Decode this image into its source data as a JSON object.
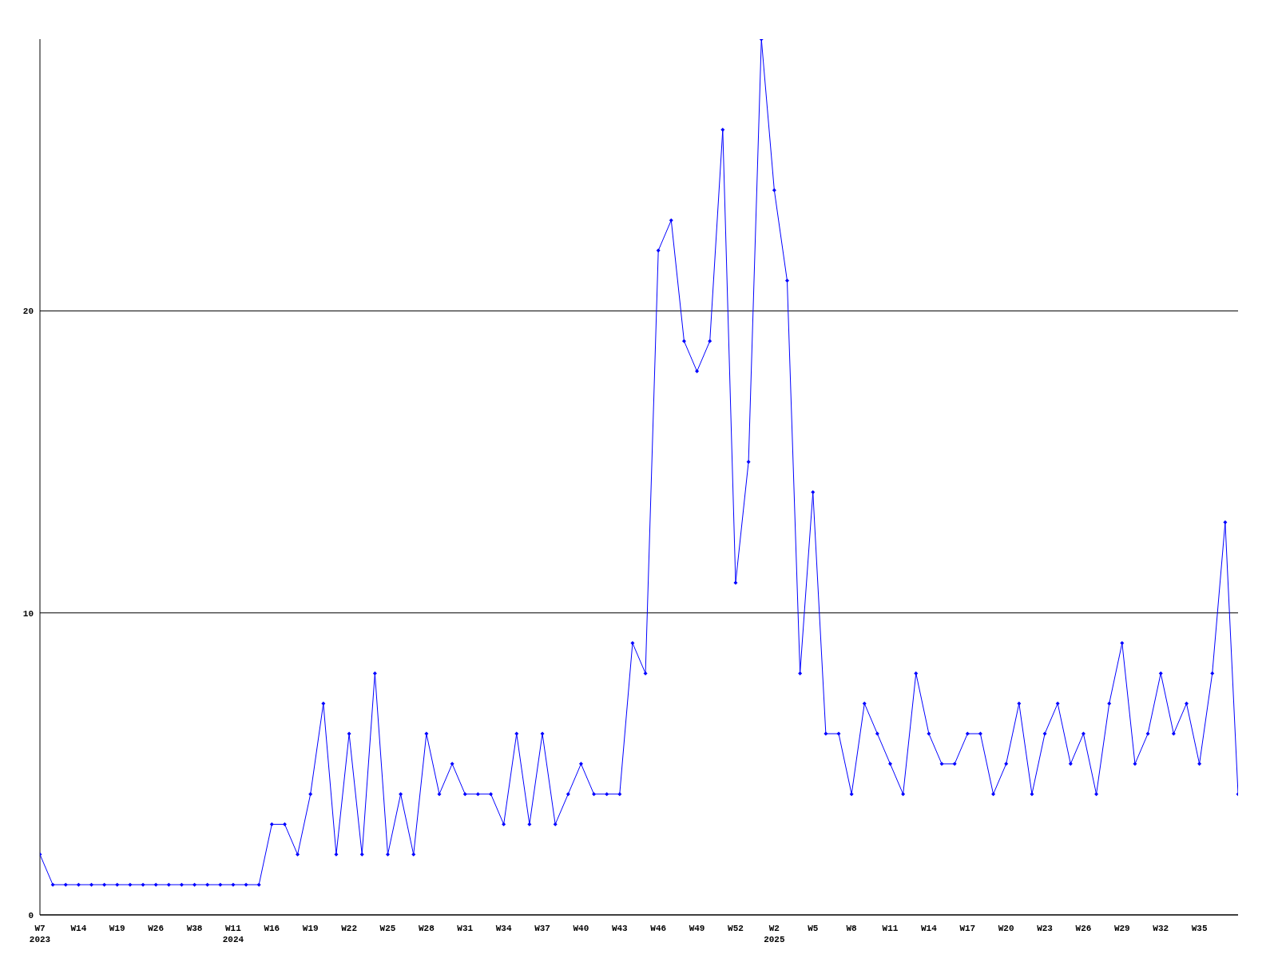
{
  "chart_data": {
    "type": "line",
    "categories": [
      "W7\n2023",
      null,
      null,
      "W14",
      null,
      null,
      "W19",
      null,
      null,
      "W26",
      null,
      null,
      "W38",
      null,
      null,
      "W11\n2024",
      null,
      null,
      "W16",
      null,
      null,
      "W19",
      null,
      null,
      "W22",
      null,
      null,
      "W25",
      null,
      null,
      "W28",
      null,
      null,
      "W31",
      null,
      null,
      "W34",
      null,
      null,
      "W37",
      null,
      null,
      "W40",
      null,
      null,
      "W43",
      null,
      null,
      "W46",
      null,
      null,
      "W49",
      null,
      null,
      "W52",
      null,
      null,
      "W2\n2025",
      null,
      null,
      "W5",
      null,
      null,
      "W8",
      null,
      null,
      "W11",
      null,
      null,
      "W14",
      null,
      null,
      "W17",
      null,
      null,
      "W20",
      null,
      null,
      "W23",
      null,
      null,
      "W26",
      null,
      null,
      "W29",
      null,
      null,
      "W32",
      null,
      null,
      "W35",
      null,
      null,
      null
    ],
    "series": [
      {
        "color": "#0000ff",
        "values": [
          2,
          1,
          1,
          1,
          1,
          1,
          1,
          1,
          1,
          1,
          1,
          1,
          1,
          1,
          1,
          1,
          1,
          1,
          3,
          3,
          2,
          4,
          7,
          2,
          6,
          2,
          8,
          2,
          4,
          2,
          6,
          4,
          5,
          4,
          4,
          4,
          3,
          6,
          3,
          6,
          3,
          4,
          5,
          4,
          4,
          4,
          9,
          8,
          22,
          23,
          19,
          18,
          19,
          26,
          11,
          15,
          29,
          24,
          21,
          8,
          14,
          6,
          6,
          4,
          7,
          6,
          5,
          4,
          8,
          6,
          5,
          5,
          6,
          6,
          4,
          5,
          7,
          4,
          6,
          7,
          5,
          6,
          4,
          7,
          9,
          5,
          6,
          8,
          6,
          7,
          5,
          8,
          13,
          4
        ]
      }
    ],
    "ylim": [
      0,
      29
    ],
    "yticks": [
      0,
      10,
      20
    ],
    "grid": "y",
    "marker": "diamond",
    "line_style": "solid"
  }
}
